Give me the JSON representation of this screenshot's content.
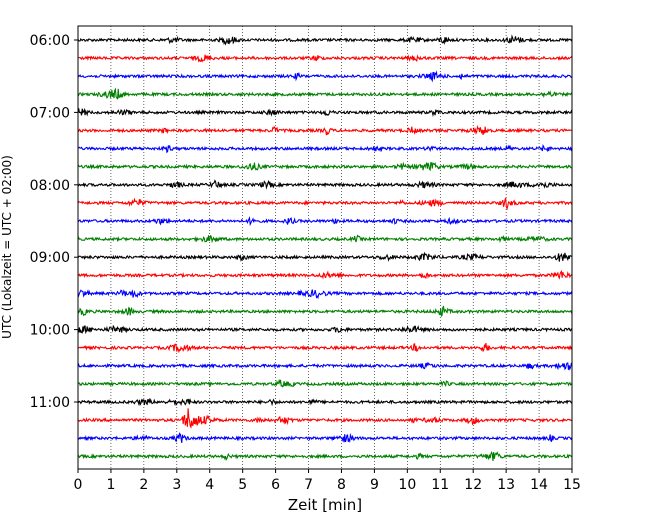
{
  "chart_data": {
    "type": "line",
    "title": "",
    "xlabel": "Zeit  [min]",
    "ylabel": "UTC (Lokalzeit = UTC + 02:00)",
    "xlim": [
      0,
      15
    ],
    "x_ticks": [
      0,
      1,
      2,
      3,
      4,
      5,
      6,
      7,
      8,
      9,
      10,
      11,
      12,
      13,
      14,
      15
    ],
    "y_tick_labels": [
      "06:00",
      "07:00",
      "08:00",
      "09:00",
      "10:00",
      "11:00"
    ],
    "grid": "vertical dotted",
    "trace_colors": [
      "#000000",
      "#ff0000",
      "#0000ff",
      "#008000"
    ],
    "traces_per_hour": 4,
    "trace_interval_min": 15,
    "series": [
      {
        "start": "06:00",
        "color": "#000000"
      },
      {
        "start": "06:15",
        "color": "#ff0000"
      },
      {
        "start": "06:30",
        "color": "#0000ff"
      },
      {
        "start": "06:45",
        "color": "#008000"
      },
      {
        "start": "07:00",
        "color": "#000000"
      },
      {
        "start": "07:15",
        "color": "#ff0000"
      },
      {
        "start": "07:30",
        "color": "#0000ff"
      },
      {
        "start": "07:45",
        "color": "#008000"
      },
      {
        "start": "08:00",
        "color": "#000000"
      },
      {
        "start": "08:15",
        "color": "#ff0000"
      },
      {
        "start": "08:30",
        "color": "#0000ff"
      },
      {
        "start": "08:45",
        "color": "#008000"
      },
      {
        "start": "09:00",
        "color": "#000000"
      },
      {
        "start": "09:15",
        "color": "#ff0000"
      },
      {
        "start": "09:30",
        "color": "#0000ff"
      },
      {
        "start": "09:45",
        "color": "#008000"
      },
      {
        "start": "10:00",
        "color": "#000000"
      },
      {
        "start": "10:15",
        "color": "#ff0000"
      },
      {
        "start": "10:30",
        "color": "#0000ff"
      },
      {
        "start": "10:45",
        "color": "#008000"
      },
      {
        "start": "11:00",
        "color": "#000000"
      },
      {
        "start": "11:15",
        "color": "#ff0000",
        "event_min": 3.3
      },
      {
        "start": "11:30",
        "color": "#0000ff",
        "event_min": 3.1
      },
      {
        "start": "11:45",
        "color": "#008000"
      }
    ]
  }
}
